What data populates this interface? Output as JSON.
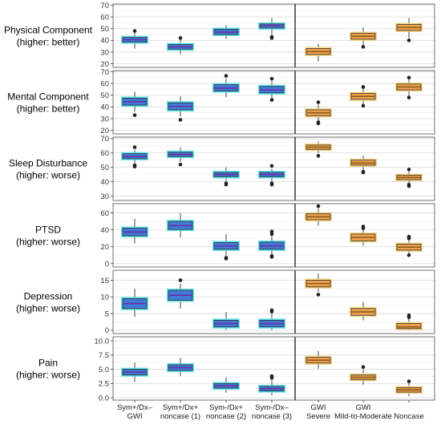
{
  "chart_data": {
    "type": "box",
    "categories": [
      {
        "line1": "Sym+/Dx–",
        "line2": "GWI",
        "group": "blue"
      },
      {
        "line1": "Sym+/Dx+",
        "line2": "noncase (1)",
        "group": "blue"
      },
      {
        "line1": "Sym-/Dx+",
        "line2": "noncase (2)",
        "group": "blue"
      },
      {
        "line1": "Sym-/Dx–",
        "line2": "noncase (3)",
        "group": "blue"
      },
      {
        "line1": "GWI",
        "line2": "Severe",
        "group": "orange"
      },
      {
        "line1": "GWI",
        "line2": "Mild-to-Moderate",
        "group": "orange"
      },
      {
        "line1": "",
        "line2": "Noncase",
        "group": "orange"
      }
    ],
    "colors": {
      "blue_fill": "#3f7bd6",
      "blue_glow": "#4fe0e8",
      "blue_median": "#6a2fa0",
      "orange_fill": "#f0a24e",
      "orange_glow": "#f6d27a",
      "orange_median": "#8b5a1e"
    },
    "panels": [
      {
        "label_line1": "Physical Component",
        "label_line2": "(higher: better)",
        "ylim": [
          17,
          71
        ],
        "ticks": [
          20,
          30,
          40,
          50,
          60,
          70
        ],
        "tick_labels": [
          "20",
          "30",
          "40",
          "50",
          "60",
          "70"
        ],
        "boxes": [
          {
            "q1": 38.5,
            "median": 40.5,
            "q3": 42.5,
            "whisker_low": 33,
            "whisker_high": 47,
            "outliers": [
              48
            ]
          },
          {
            "q1": 32.5,
            "median": 34.5,
            "q3": 36.5,
            "whisker_low": 28,
            "whisker_high": 41,
            "outliers": [
              42
            ]
          },
          {
            "q1": 45,
            "median": 47,
            "q3": 49.5,
            "whisker_low": 41,
            "whisker_high": 53,
            "outliers": []
          },
          {
            "q1": 50.5,
            "median": 52.5,
            "q3": 54,
            "whisker_low": 45,
            "whisker_high": 59,
            "outliers": [
              43,
              42
            ]
          },
          {
            "q1": 28,
            "median": 30.5,
            "q3": 33,
            "whisker_low": 22,
            "whisker_high": 37,
            "outliers": []
          },
          {
            "q1": 41,
            "median": 43.5,
            "q3": 46,
            "whisker_low": 36,
            "whisker_high": 51,
            "outliers": [
              34.5
            ]
          },
          {
            "q1": 48.5,
            "median": 51,
            "q3": 53.5,
            "whisker_low": 42,
            "whisker_high": 59,
            "outliers": [
              40
            ]
          }
        ]
      },
      {
        "label_line1": "Mental Component",
        "label_line2": "(higher: better)",
        "ylim": [
          17,
          71
        ],
        "ticks": [
          20,
          30,
          40,
          50,
          60,
          70
        ],
        "tick_labels": [
          "20",
          "30",
          "40",
          "50",
          "60",
          "70"
        ],
        "boxes": [
          {
            "q1": 41.5,
            "median": 44.5,
            "q3": 47.5,
            "whisker_low": 36,
            "whisker_high": 53,
            "outliers": [
              33
            ]
          },
          {
            "q1": 37.5,
            "median": 40.5,
            "q3": 43.5,
            "whisker_low": 32,
            "whisker_high": 49,
            "outliers": [
              29
            ]
          },
          {
            "q1": 53.5,
            "median": 56,
            "q3": 59,
            "whisker_low": 48,
            "whisker_high": 64,
            "outliers": [
              66.5
            ]
          },
          {
            "q1": 52,
            "median": 54.5,
            "q3": 57.5,
            "whisker_low": 47,
            "whisker_high": 62,
            "outliers": [
              64,
              46
            ]
          },
          {
            "q1": 32.5,
            "median": 35,
            "q3": 37.5,
            "whisker_low": 28,
            "whisker_high": 42,
            "outliers": [
              44,
              27,
              26
            ]
          },
          {
            "q1": 46.5,
            "median": 49,
            "q3": 51.5,
            "whisker_low": 42,
            "whisker_high": 56,
            "outliers": [
              57,
              41
            ]
          },
          {
            "q1": 54.5,
            "median": 57,
            "q3": 59.5,
            "whisker_low": 49,
            "whisker_high": 64,
            "outliers": [
              65,
              48
            ]
          }
        ]
      },
      {
        "label_line1": "Sleep Disturbance",
        "label_line2": "(higher: worse)",
        "ylim": [
          27,
          71
        ],
        "ticks": [
          30,
          40,
          50,
          60,
          70
        ],
        "tick_labels": [
          "30",
          "40",
          "50",
          "60",
          "70"
        ],
        "boxes": [
          {
            "q1": 56,
            "median": 57.5,
            "q3": 59.5,
            "whisker_low": 53,
            "whisker_high": 62,
            "outliers": [
              64,
              51.5,
              50.5
            ]
          },
          {
            "q1": 57.5,
            "median": 59,
            "q3": 60.5,
            "whisker_low": 54,
            "whisker_high": 64,
            "outliers": [
              52
            ]
          },
          {
            "q1": 43.5,
            "median": 45,
            "q3": 46.5,
            "whisker_low": 40.5,
            "whisker_high": 50,
            "outliers": [
              39,
              38
            ]
          },
          {
            "q1": 43.5,
            "median": 45,
            "q3": 46.5,
            "whisker_low": 40.5,
            "whisker_high": 49,
            "outliers": [
              51,
              39,
              38
            ]
          },
          {
            "q1": 62.5,
            "median": 64,
            "q3": 65.5,
            "whisker_low": 60,
            "whisker_high": 68,
            "outliers": [
              58
            ]
          },
          {
            "q1": 51.5,
            "median": 53,
            "q3": 55,
            "whisker_low": 48,
            "whisker_high": 58,
            "outliers": [
              47,
              46.5
            ]
          },
          {
            "q1": 41.5,
            "median": 43,
            "q3": 44.5,
            "whisker_low": 39,
            "whisker_high": 47,
            "outliers": [
              48.5,
              38,
              37
            ]
          }
        ]
      },
      {
        "label_line1": "PTSD",
        "label_line2": "(higher: worse)",
        "ylim": [
          -4,
          71
        ],
        "ticks": [
          0,
          20,
          40,
          60
        ],
        "tick_labels": [
          "0",
          "20",
          "40",
          "60"
        ],
        "boxes": [
          {
            "q1": 33,
            "median": 37.5,
            "q3": 42,
            "whisker_low": 24,
            "whisker_high": 53,
            "outliers": []
          },
          {
            "q1": 40.5,
            "median": 45,
            "q3": 50,
            "whisker_low": 31,
            "whisker_high": 60,
            "outliers": []
          },
          {
            "q1": 17,
            "median": 21,
            "q3": 25,
            "whisker_low": 9,
            "whisker_high": 35,
            "outliers": [
              7,
              6
            ]
          },
          {
            "q1": 17,
            "median": 21,
            "q3": 25.5,
            "whisker_low": 10,
            "whisker_high": 33,
            "outliers": [
              38,
              35,
              9,
              8
            ]
          },
          {
            "q1": 52,
            "median": 55.5,
            "q3": 59,
            "whisker_low": 45,
            "whisker_high": 65,
            "outliers": [
              68
            ]
          },
          {
            "q1": 27,
            "median": 31,
            "q3": 35,
            "whisker_low": 21,
            "whisker_high": 41,
            "outliers": [
              44,
              42
            ]
          },
          {
            "q1": 16,
            "median": 19.5,
            "q3": 23,
            "whisker_low": 11,
            "whisker_high": 29,
            "outliers": [
              32,
              30,
              10
            ]
          }
        ]
      },
      {
        "label_line1": "Depression",
        "label_line2": "(higher: worse)",
        "ylim": [
          -1,
          18
        ],
        "ticks": [
          0,
          5,
          10,
          15
        ],
        "tick_labels": [
          "0",
          "5",
          "10",
          "15"
        ],
        "boxes": [
          {
            "q1": 6.5,
            "median": 8,
            "q3": 9.5,
            "whisker_low": 4,
            "whisker_high": 12.5,
            "outliers": []
          },
          {
            "q1": 9,
            "median": 10.5,
            "q3": 12,
            "whisker_low": 6.5,
            "whisker_high": 14,
            "outliers": [
              15
            ]
          },
          {
            "q1": 1,
            "median": 2,
            "q3": 3,
            "whisker_low": 0,
            "whisker_high": 5.5,
            "outliers": []
          },
          {
            "q1": 1,
            "median": 2,
            "q3": 3,
            "whisker_low": 0,
            "whisker_high": 5,
            "outliers": [
              6,
              5.6
            ]
          },
          {
            "q1": 13,
            "median": 14,
            "q3": 15,
            "whisker_low": 11.5,
            "whisker_high": 17,
            "outliers": [
              10.7
            ]
          },
          {
            "q1": 4.5,
            "median": 5.5,
            "q3": 6.5,
            "whisker_low": 3,
            "whisker_high": 8.5,
            "outliers": []
          },
          {
            "q1": 0.5,
            "median": 1,
            "q3": 2,
            "whisker_low": 0,
            "whisker_high": 3.5,
            "outliers": [
              4.5,
              3.9
            ]
          }
        ]
      },
      {
        "label_line1": "Pain",
        "label_line2": "(higher: worse)",
        "ylim": [
          -0.4,
          10.7
        ],
        "ticks": [
          0,
          2.5,
          5,
          7.5,
          10
        ],
        "tick_labels": [
          "0.0",
          "2.5",
          "5.0",
          "7.5",
          "10.0"
        ],
        "boxes": [
          {
            "q1": 4,
            "median": 4.5,
            "q3": 5,
            "whisker_low": 2.8,
            "whisker_high": 6.2,
            "outliers": []
          },
          {
            "q1": 4.8,
            "median": 5.3,
            "q3": 5.8,
            "whisker_low": 3.8,
            "whisker_high": 7,
            "outliers": []
          },
          {
            "q1": 1.7,
            "median": 2.1,
            "q3": 2.5,
            "whisker_low": 0.9,
            "whisker_high": 3.6,
            "outliers": []
          },
          {
            "q1": 1.2,
            "median": 1.6,
            "q3": 2,
            "whisker_low": 0.4,
            "whisker_high": 3.1,
            "outliers": [
              3.8,
              3.5
            ]
          },
          {
            "q1": 6.1,
            "median": 6.6,
            "q3": 7.1,
            "whisker_low": 5.1,
            "whisker_high": 8.2,
            "outliers": []
          },
          {
            "q1": 3.2,
            "median": 3.6,
            "q3": 4,
            "whisker_low": 2.3,
            "whisker_high": 5,
            "outliers": [
              5.4
            ]
          },
          {
            "q1": 1,
            "median": 1.4,
            "q3": 1.8,
            "whisker_low": 0.3,
            "whisker_high": 2.6,
            "outliers": [
              2.9
            ]
          }
        ]
      }
    ],
    "grid": true,
    "divider_between_categories": [
      4,
      5
    ]
  }
}
